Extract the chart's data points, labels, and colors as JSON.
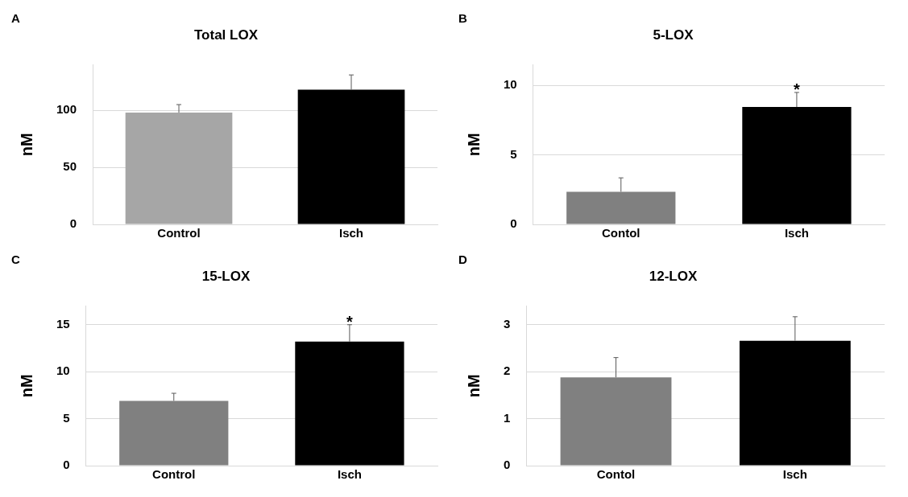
{
  "chart_data": [
    {
      "type": "bar",
      "title": "Total LOX",
      "ylabel": "nM",
      "categories": [
        "Control",
        "Isch"
      ],
      "values": [
        98,
        118
      ],
      "colors": [
        "#a6a6a6",
        "#000000"
      ],
      "errors": [
        [
          98,
          105
        ],
        [
          118,
          131
        ]
      ],
      "ylim": [
        0,
        140
      ],
      "yticks": [
        0,
        50,
        100
      ],
      "grid": "y",
      "annotations": [
        "A"
      ]
    },
    {
      "type": "bar",
      "title": "5-LOX",
      "ylabel": "nM",
      "categories": [
        "Contol",
        "Isch"
      ],
      "values": [
        2.35,
        8.45
      ],
      "colors": [
        "#808080",
        "#000000"
      ],
      "errors": [
        [
          2.35,
          3.35
        ],
        [
          8.45,
          9.5
        ]
      ],
      "ylim": [
        0,
        11.5
      ],
      "yticks": [
        0,
        5,
        10
      ],
      "grid": "y",
      "annotations": [
        "B",
        {
          "text": "*",
          "x": "Isch",
          "y": 9.5
        }
      ]
    },
    {
      "type": "bar",
      "title": "15-LOX",
      "ylabel": "nM",
      "categories": [
        "Control",
        "Isch"
      ],
      "values": [
        6.9,
        13.2
      ],
      "colors": [
        "#808080",
        "#000000"
      ],
      "errors": [
        [
          6.9,
          7.7
        ],
        [
          13.2,
          15
        ]
      ],
      "ylim": [
        0,
        17
      ],
      "yticks": [
        0,
        5,
        10,
        15
      ],
      "grid": "y",
      "annotations": [
        "C",
        {
          "text": "*",
          "x": "Isch",
          "y": 15
        }
      ]
    },
    {
      "type": "bar",
      "title": "12-LOX",
      "ylabel": "nM",
      "categories": [
        "Contol",
        "Isch"
      ],
      "values": [
        1.88,
        2.66
      ],
      "colors": [
        "#808080",
        "#000000"
      ],
      "errors": [
        [
          1.88,
          2.3
        ],
        [
          2.66,
          3.17
        ]
      ],
      "ylim": [
        0,
        3.4
      ],
      "yticks": [
        0,
        1,
        2,
        3
      ],
      "grid": "y",
      "annotations": [
        "D"
      ]
    }
  ]
}
